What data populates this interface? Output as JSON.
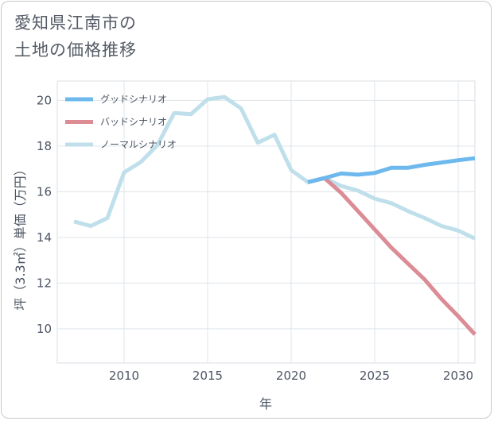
{
  "title_lines": [
    "愛知県江南市の",
    "土地の価格推移"
  ],
  "chart_data": {
    "type": "line",
    "title": "愛知県江南市の土地の価格推移",
    "xlabel": "年",
    "ylabel": "坪（3.3㎡）単価（万円）",
    "xlim": [
      2006.0,
      2031.0
    ],
    "ylim": [
      8.5,
      20.85
    ],
    "x_ticks": [
      2010,
      2015,
      2020,
      2025,
      2030
    ],
    "y_ticks": [
      10,
      12,
      14,
      16,
      18,
      20
    ],
    "grid": true,
    "legend_position": "top-left",
    "series": [
      {
        "name": "グッドシナリオ",
        "color": "#6db8ed",
        "x": [
          2021,
          2022,
          2023,
          2024,
          2025,
          2026,
          2027,
          2028,
          2029,
          2030,
          2031
        ],
        "y": [
          16.42,
          16.6,
          16.8,
          16.75,
          16.82,
          17.05,
          17.05,
          17.18,
          17.28,
          17.38,
          17.47
        ]
      },
      {
        "name": "バッドシナリオ",
        "color": "#db8c95",
        "x": [
          2021,
          2022,
          2023,
          2024,
          2025,
          2026,
          2027,
          2028,
          2029,
          2030,
          2031
        ],
        "y": [
          16.42,
          16.6,
          15.95,
          15.15,
          14.35,
          13.55,
          12.85,
          12.15,
          11.3,
          10.55,
          9.75
        ]
      },
      {
        "name": "ノーマルシナリオ",
        "color": "#bfdfeb",
        "x": [
          2007,
          2008,
          2009,
          2010,
          2011,
          2012,
          2013,
          2014,
          2015,
          2016,
          2017,
          2018,
          2019,
          2020,
          2021,
          2022,
          2023,
          2024,
          2025,
          2026,
          2027,
          2028,
          2029,
          2030,
          2031
        ],
        "y": [
          14.7,
          14.5,
          14.85,
          16.85,
          17.3,
          18.05,
          19.45,
          19.4,
          20.05,
          20.15,
          19.65,
          18.15,
          18.5,
          16.95,
          16.42,
          16.6,
          16.25,
          16.05,
          15.7,
          15.5,
          15.15,
          14.85,
          14.5,
          14.3,
          13.95
        ]
      }
    ]
  }
}
